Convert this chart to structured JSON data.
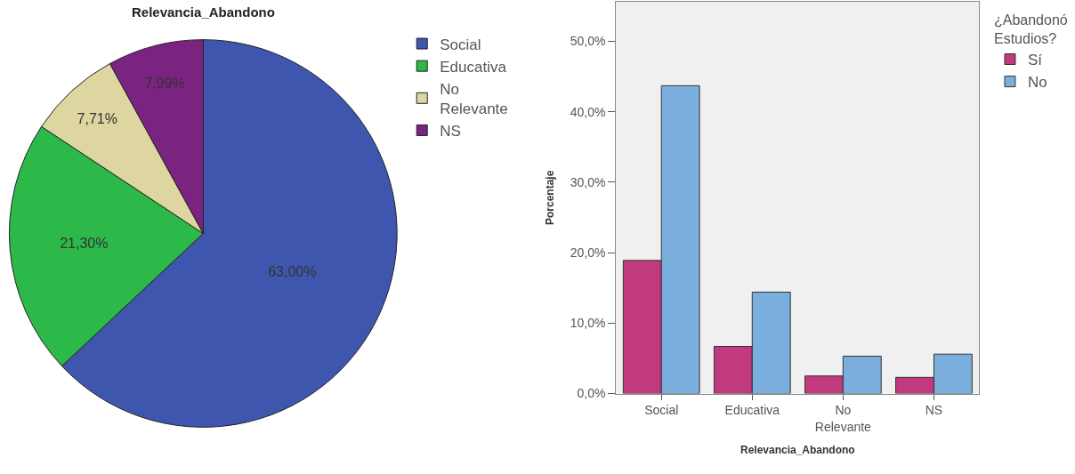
{
  "chart_data": [
    {
      "type": "pie",
      "title": "Relevancia_Abandono",
      "categories": [
        "Social",
        "Educativa",
        "No\nRelevante",
        "NS"
      ],
      "values": [
        63.0,
        21.3,
        7.71,
        7.99
      ],
      "colors": [
        "#3f56ae",
        "#2db84a",
        "#ddd6a0",
        "#7b2381"
      ],
      "value_labels": [
        "63,00%",
        "21,30%",
        "7,71%",
        "7,99%"
      ],
      "legend": "top right"
    },
    {
      "type": "bar",
      "xlabel": "Relevancia_Abandono",
      "ylabel": "Porcentaje",
      "legend_title": "¿Abandonó\nEstudios?",
      "categories": [
        "Social",
        "Educativa",
        "No\nRelevante",
        "NS"
      ],
      "series": [
        {
          "name": "Sí",
          "color": "#c23a7e",
          "values": [
            18.9,
            6.7,
            2.5,
            2.3
          ]
        },
        {
          "name": "No",
          "color": "#7aaedc",
          "values": [
            43.7,
            14.4,
            5.3,
            5.6
          ]
        }
      ],
      "ylim": [
        0,
        55.6
      ],
      "yticks": [
        {
          "value": 0,
          "label": "0,0%"
        },
        {
          "value": 10,
          "label": "10,0%"
        },
        {
          "value": 20,
          "label": "20,0%"
        },
        {
          "value": 30,
          "label": "30,0%"
        },
        {
          "value": 40,
          "label": "40,0%"
        },
        {
          "value": 50,
          "label": "50,0%"
        }
      ],
      "grid": false,
      "legend": "top right"
    }
  ]
}
